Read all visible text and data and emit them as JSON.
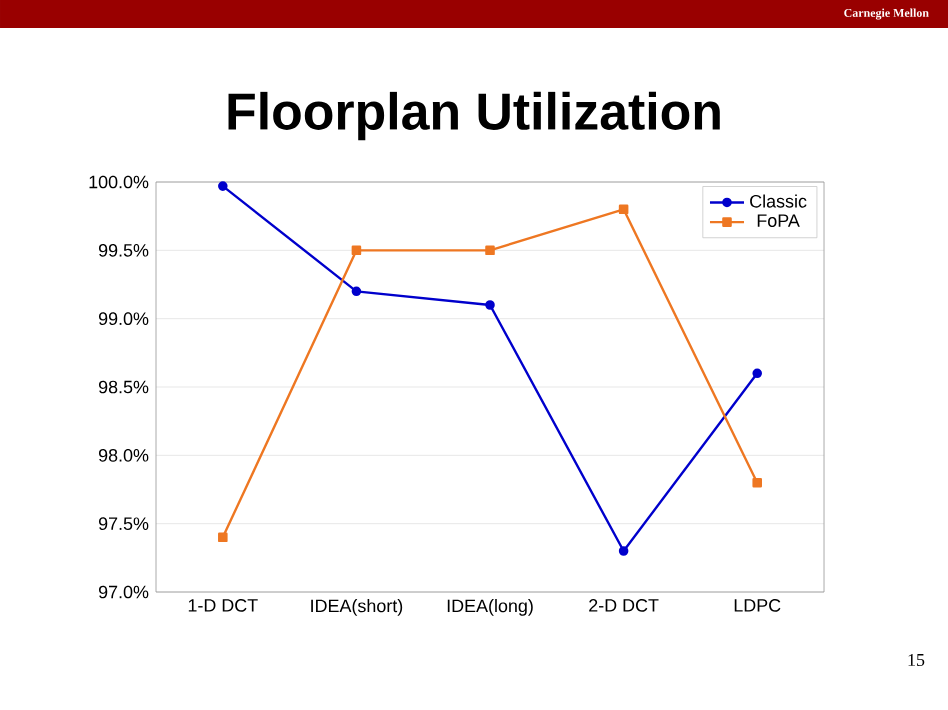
{
  "chart_data": {
    "type": "line",
    "title": "Floorplan Utilization",
    "categories": [
      "1-D DCT",
      "IDEA(short)",
      "IDEA(long)",
      "2-D DCT",
      "LDPC"
    ],
    "series": [
      {
        "name": "Classic",
        "color": "#0000cc",
        "marker": "circle",
        "values": [
          99.97,
          99.2,
          99.1,
          97.3,
          98.6
        ]
      },
      {
        "name": "FoPA",
        "color": "#ee7722",
        "marker": "square",
        "values": [
          97.4,
          99.5,
          99.5,
          99.8,
          97.8
        ]
      }
    ],
    "ylim": [
      97.0,
      100.0
    ],
    "yticks": [
      {
        "value": 97.0,
        "label": "97.0%"
      },
      {
        "value": 97.5,
        "label": "97.5%"
      },
      {
        "value": 98.0,
        "label": "98.0%"
      },
      {
        "value": 98.5,
        "label": "98.5%"
      },
      {
        "value": 99.0,
        "label": "99.0%"
      },
      {
        "value": 99.5,
        "label": "99.5%"
      },
      {
        "value": 100.0,
        "label": "100.0%"
      }
    ],
    "grid": "y",
    "legend": "top right",
    "line_style": "solid",
    "annotations": [
      "Carnegie Mellon",
      "15"
    ]
  }
}
